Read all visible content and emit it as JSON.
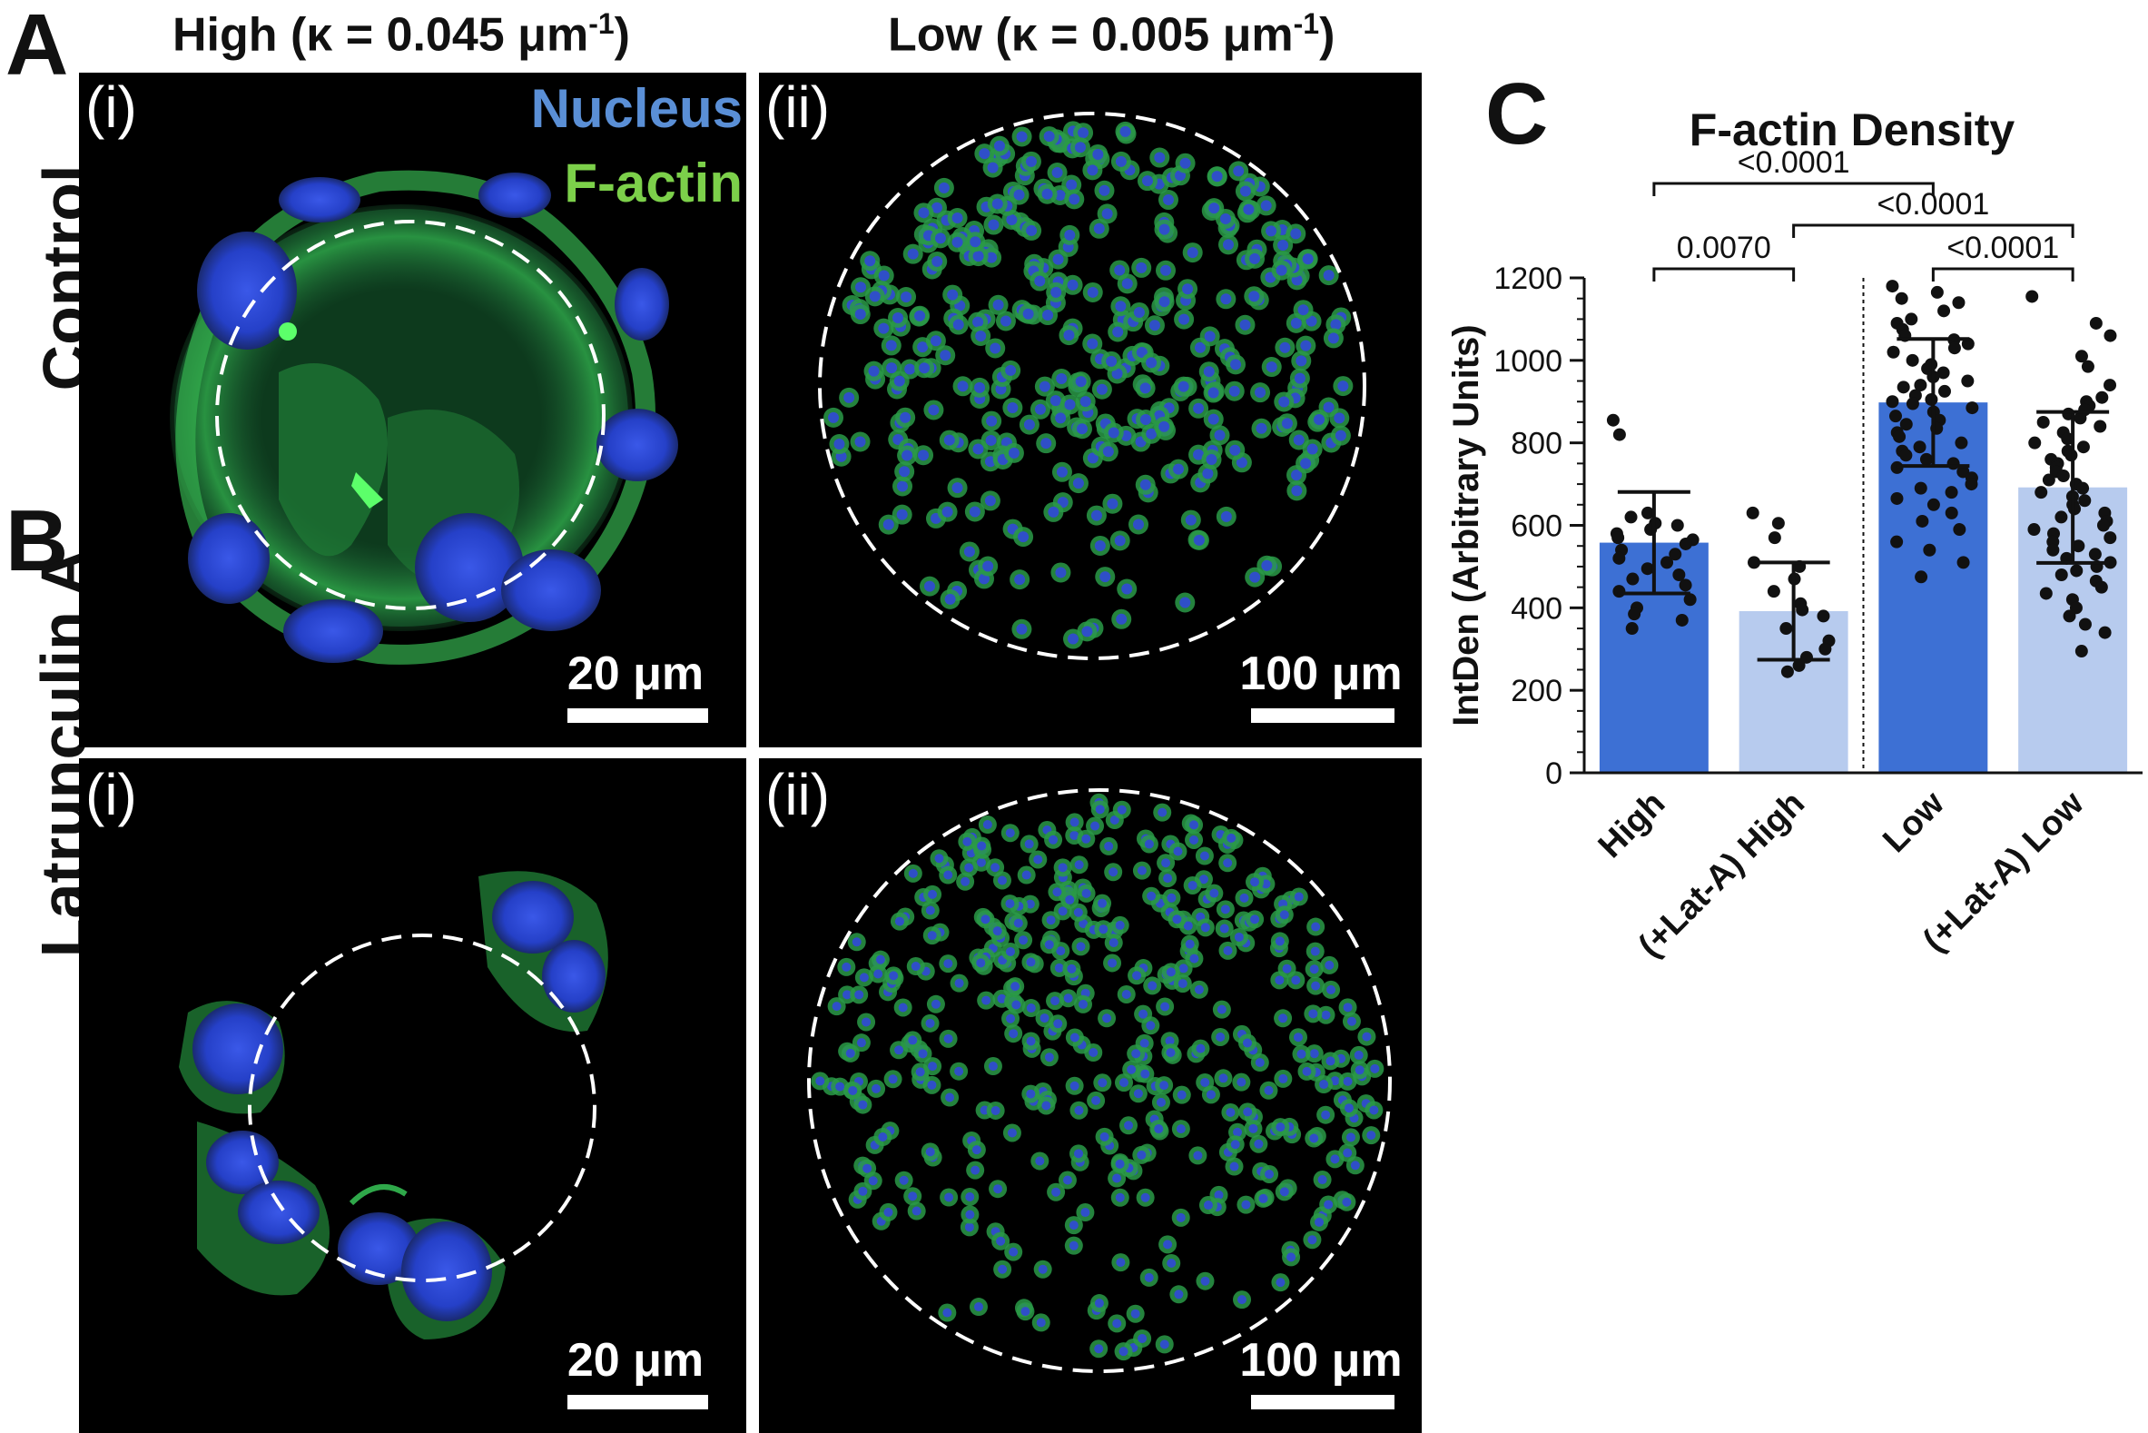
{
  "figure": {
    "panel_a": "A",
    "panel_b": "B",
    "panel_c": "C",
    "col_high_title": "High (κ = 0.045 μm",
    "col_high_sup": "-1",
    "col_high_close": ")",
    "col_low_title": "Low (κ = 0.005 μm",
    "col_low_sup": "-1",
    "col_low_close": ")",
    "row_control": "Control",
    "row_latA": "Latrunculin A",
    "sub_i": "(i)",
    "sub_ii": "(ii)",
    "legend_nucleus": "Nucleus",
    "legend_factin": "F-actin",
    "scale_small": "20 μm",
    "scale_large": "100 μm",
    "colors": {
      "nucleus": "#5a8fd6",
      "factin": "#7cd04a",
      "bar_dark": "#3d70d4",
      "bar_light": "#b7cbee"
    }
  },
  "chart_data": {
    "type": "bar",
    "title": "F-actin Density",
    "ylabel": "IntDen (Arbitrary Units)",
    "ylim": [
      0,
      1200
    ],
    "yticks": [
      0,
      200,
      400,
      600,
      800,
      1000,
      1200
    ],
    "categories": [
      "High",
      "(+Lat-A) High",
      "Low",
      "(+Lat-A) Low"
    ],
    "means": [
      558,
      392,
      898,
      692
    ],
    "sd": [
      123,
      118,
      154,
      183
    ],
    "bar_colors": [
      "#3d70d4",
      "#b7cbee",
      "#3d70d4",
      "#b7cbee"
    ],
    "points": [
      [
        855,
        820,
        630,
        620,
        605,
        600,
        590,
        580,
        570,
        565,
        555,
        540,
        530,
        520,
        510,
        495,
        480,
        470,
        455,
        440,
        420,
        400,
        385,
        370,
        350
      ],
      [
        630,
        605,
        570,
        510,
        500,
        470,
        440,
        410,
        395,
        380,
        350,
        320,
        300,
        280,
        260,
        245
      ],
      [
        1180,
        1165,
        1150,
        1140,
        1120,
        1100,
        1090,
        1075,
        1060,
        1050,
        1040,
        1030,
        1020,
        1000,
        990,
        980,
        970,
        960,
        950,
        940,
        935,
        925,
        915,
        905,
        900,
        895,
        885,
        875,
        865,
        855,
        845,
        835,
        825,
        815,
        800,
        790,
        780,
        770,
        760,
        750,
        740,
        730,
        715,
        700,
        690,
        680,
        665,
        650,
        630,
        610,
        590,
        560,
        540,
        510,
        475
      ],
      [
        1155,
        1090,
        1060,
        1010,
        985,
        940,
        910,
        900,
        890,
        880,
        870,
        860,
        850,
        840,
        825,
        810,
        800,
        790,
        780,
        770,
        760,
        750,
        740,
        730,
        720,
        710,
        700,
        690,
        680,
        670,
        660,
        650,
        640,
        630,
        620,
        610,
        600,
        590,
        580,
        570,
        560,
        550,
        540,
        530,
        520,
        510,
        500,
        490,
        480,
        465,
        450,
        435,
        420,
        400,
        380,
        360,
        340,
        295
      ]
    ],
    "brackets": [
      {
        "from": 0,
        "to": 1,
        "label": "0.0070",
        "level": 0
      },
      {
        "from": 2,
        "to": 3,
        "label": "<0.0001",
        "level": 0
      },
      {
        "from": 1,
        "to": 3,
        "label": "<0.0001",
        "level": 1
      },
      {
        "from": 0,
        "to": 2,
        "label": "<0.0001",
        "level": 2
      }
    ],
    "divider_after_category": 1
  }
}
